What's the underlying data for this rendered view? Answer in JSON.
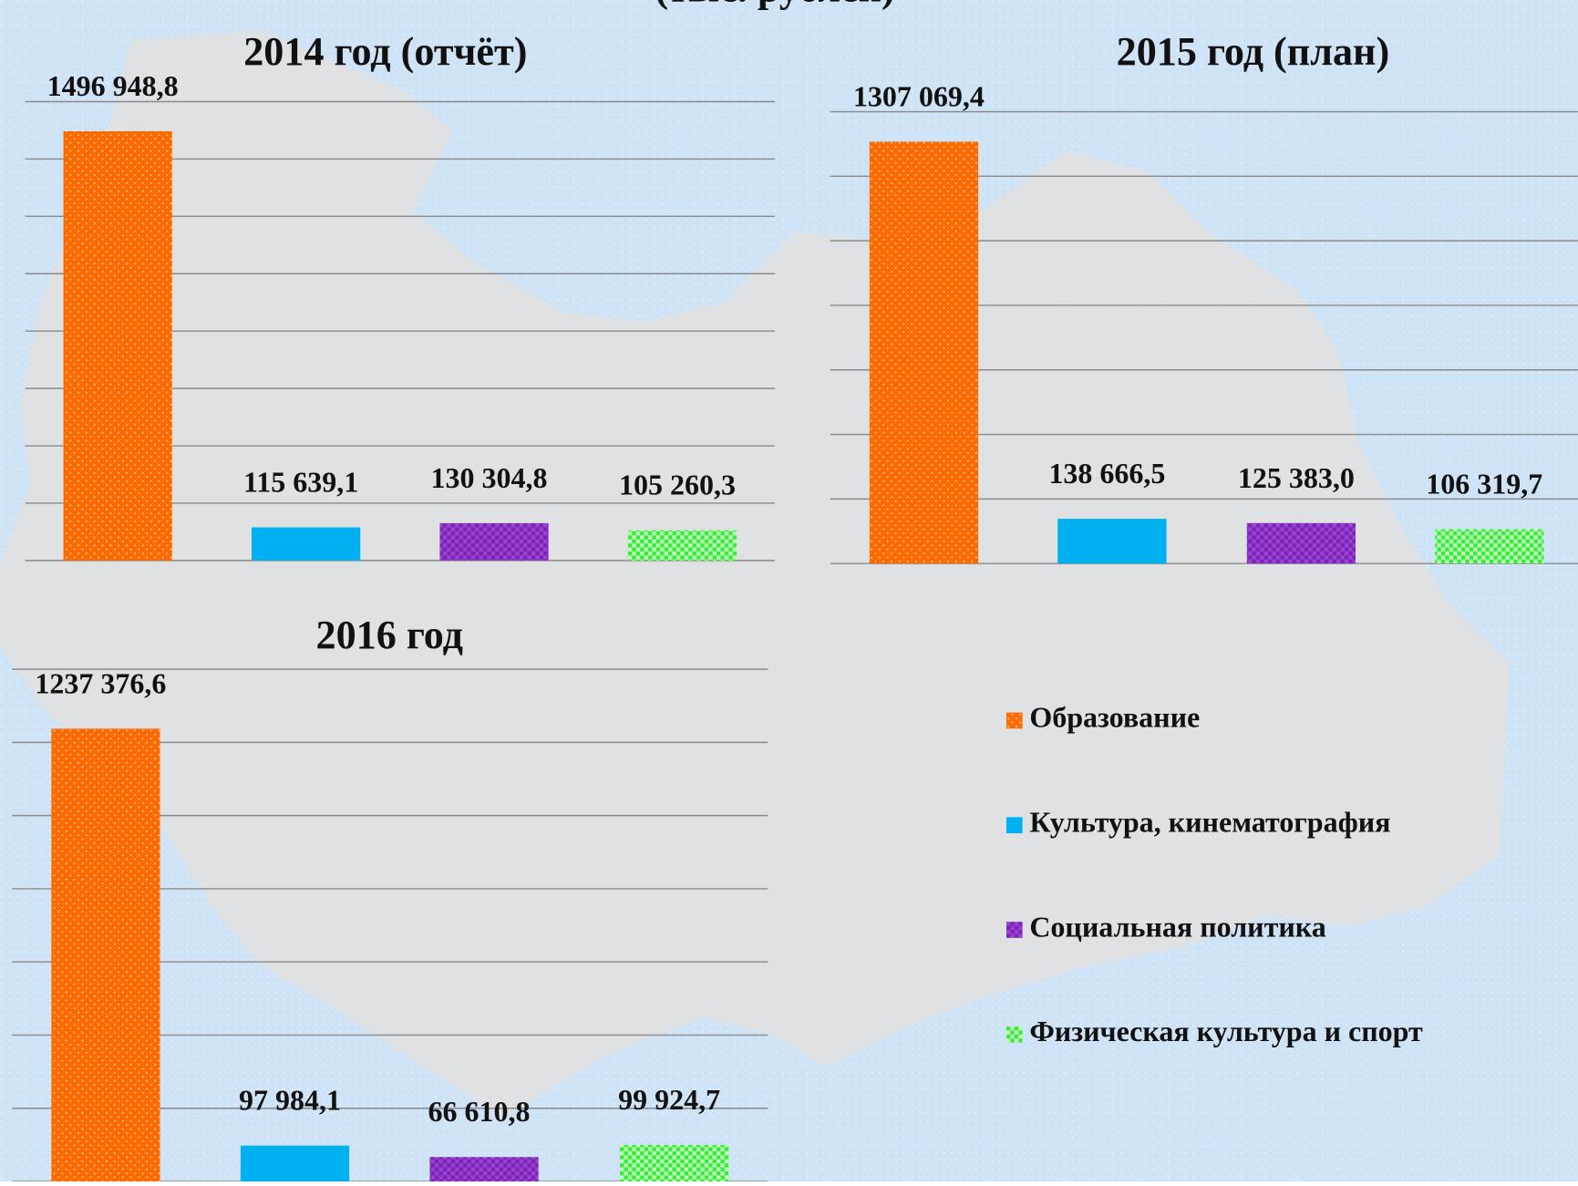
{
  "header": "(тыс. рублей)",
  "legend": [
    {
      "name": "Образование",
      "color": "#ff6a00"
    },
    {
      "name": "Культура, кинематография",
      "color": "#00b0f0"
    },
    {
      "name": "Социальная политика",
      "color": "#9b3fd6"
    },
    {
      "name": "Физическая культура и спорт",
      "color": "#33ee33"
    }
  ],
  "chart_data": [
    {
      "type": "bar",
      "title": "2014 год (отчёт)",
      "values": [
        1496948.8,
        115639.1,
        130304.8,
        105260.3
      ],
      "value_labels": [
        "1496 948,8",
        "115 639,1",
        "130 304,8",
        "105 260,3"
      ],
      "ylim": [
        0,
        1600000
      ],
      "yticks": [
        0,
        200000,
        400000,
        600000,
        800000,
        1000000,
        1200000,
        1400000,
        1600000
      ],
      "grid": true
    },
    {
      "type": "bar",
      "title": "2015 год (план)",
      "values": [
        1307069.4,
        138666.5,
        125383.0,
        106319.7
      ],
      "value_labels": [
        "1307 069,4",
        "138 666,5",
        "125 383,0",
        "106 319,7"
      ],
      "ylim": [
        0,
        1400000
      ],
      "yticks": [
        0,
        200000,
        400000,
        600000,
        800000,
        1000000,
        1200000,
        1400000
      ],
      "grid": true
    },
    {
      "type": "bar",
      "title": "2016 год",
      "values": [
        1237376.6,
        97984.1,
        66610.8,
        99924.7
      ],
      "value_labels": [
        "1237 376,6",
        "97 984,1",
        "66 610,8",
        "99 924,7"
      ],
      "ylim": [
        0,
        1400000
      ],
      "yticks": [
        0,
        200000,
        400000,
        600000,
        800000,
        1000000,
        1200000,
        1400000
      ],
      "grid": true
    }
  ]
}
